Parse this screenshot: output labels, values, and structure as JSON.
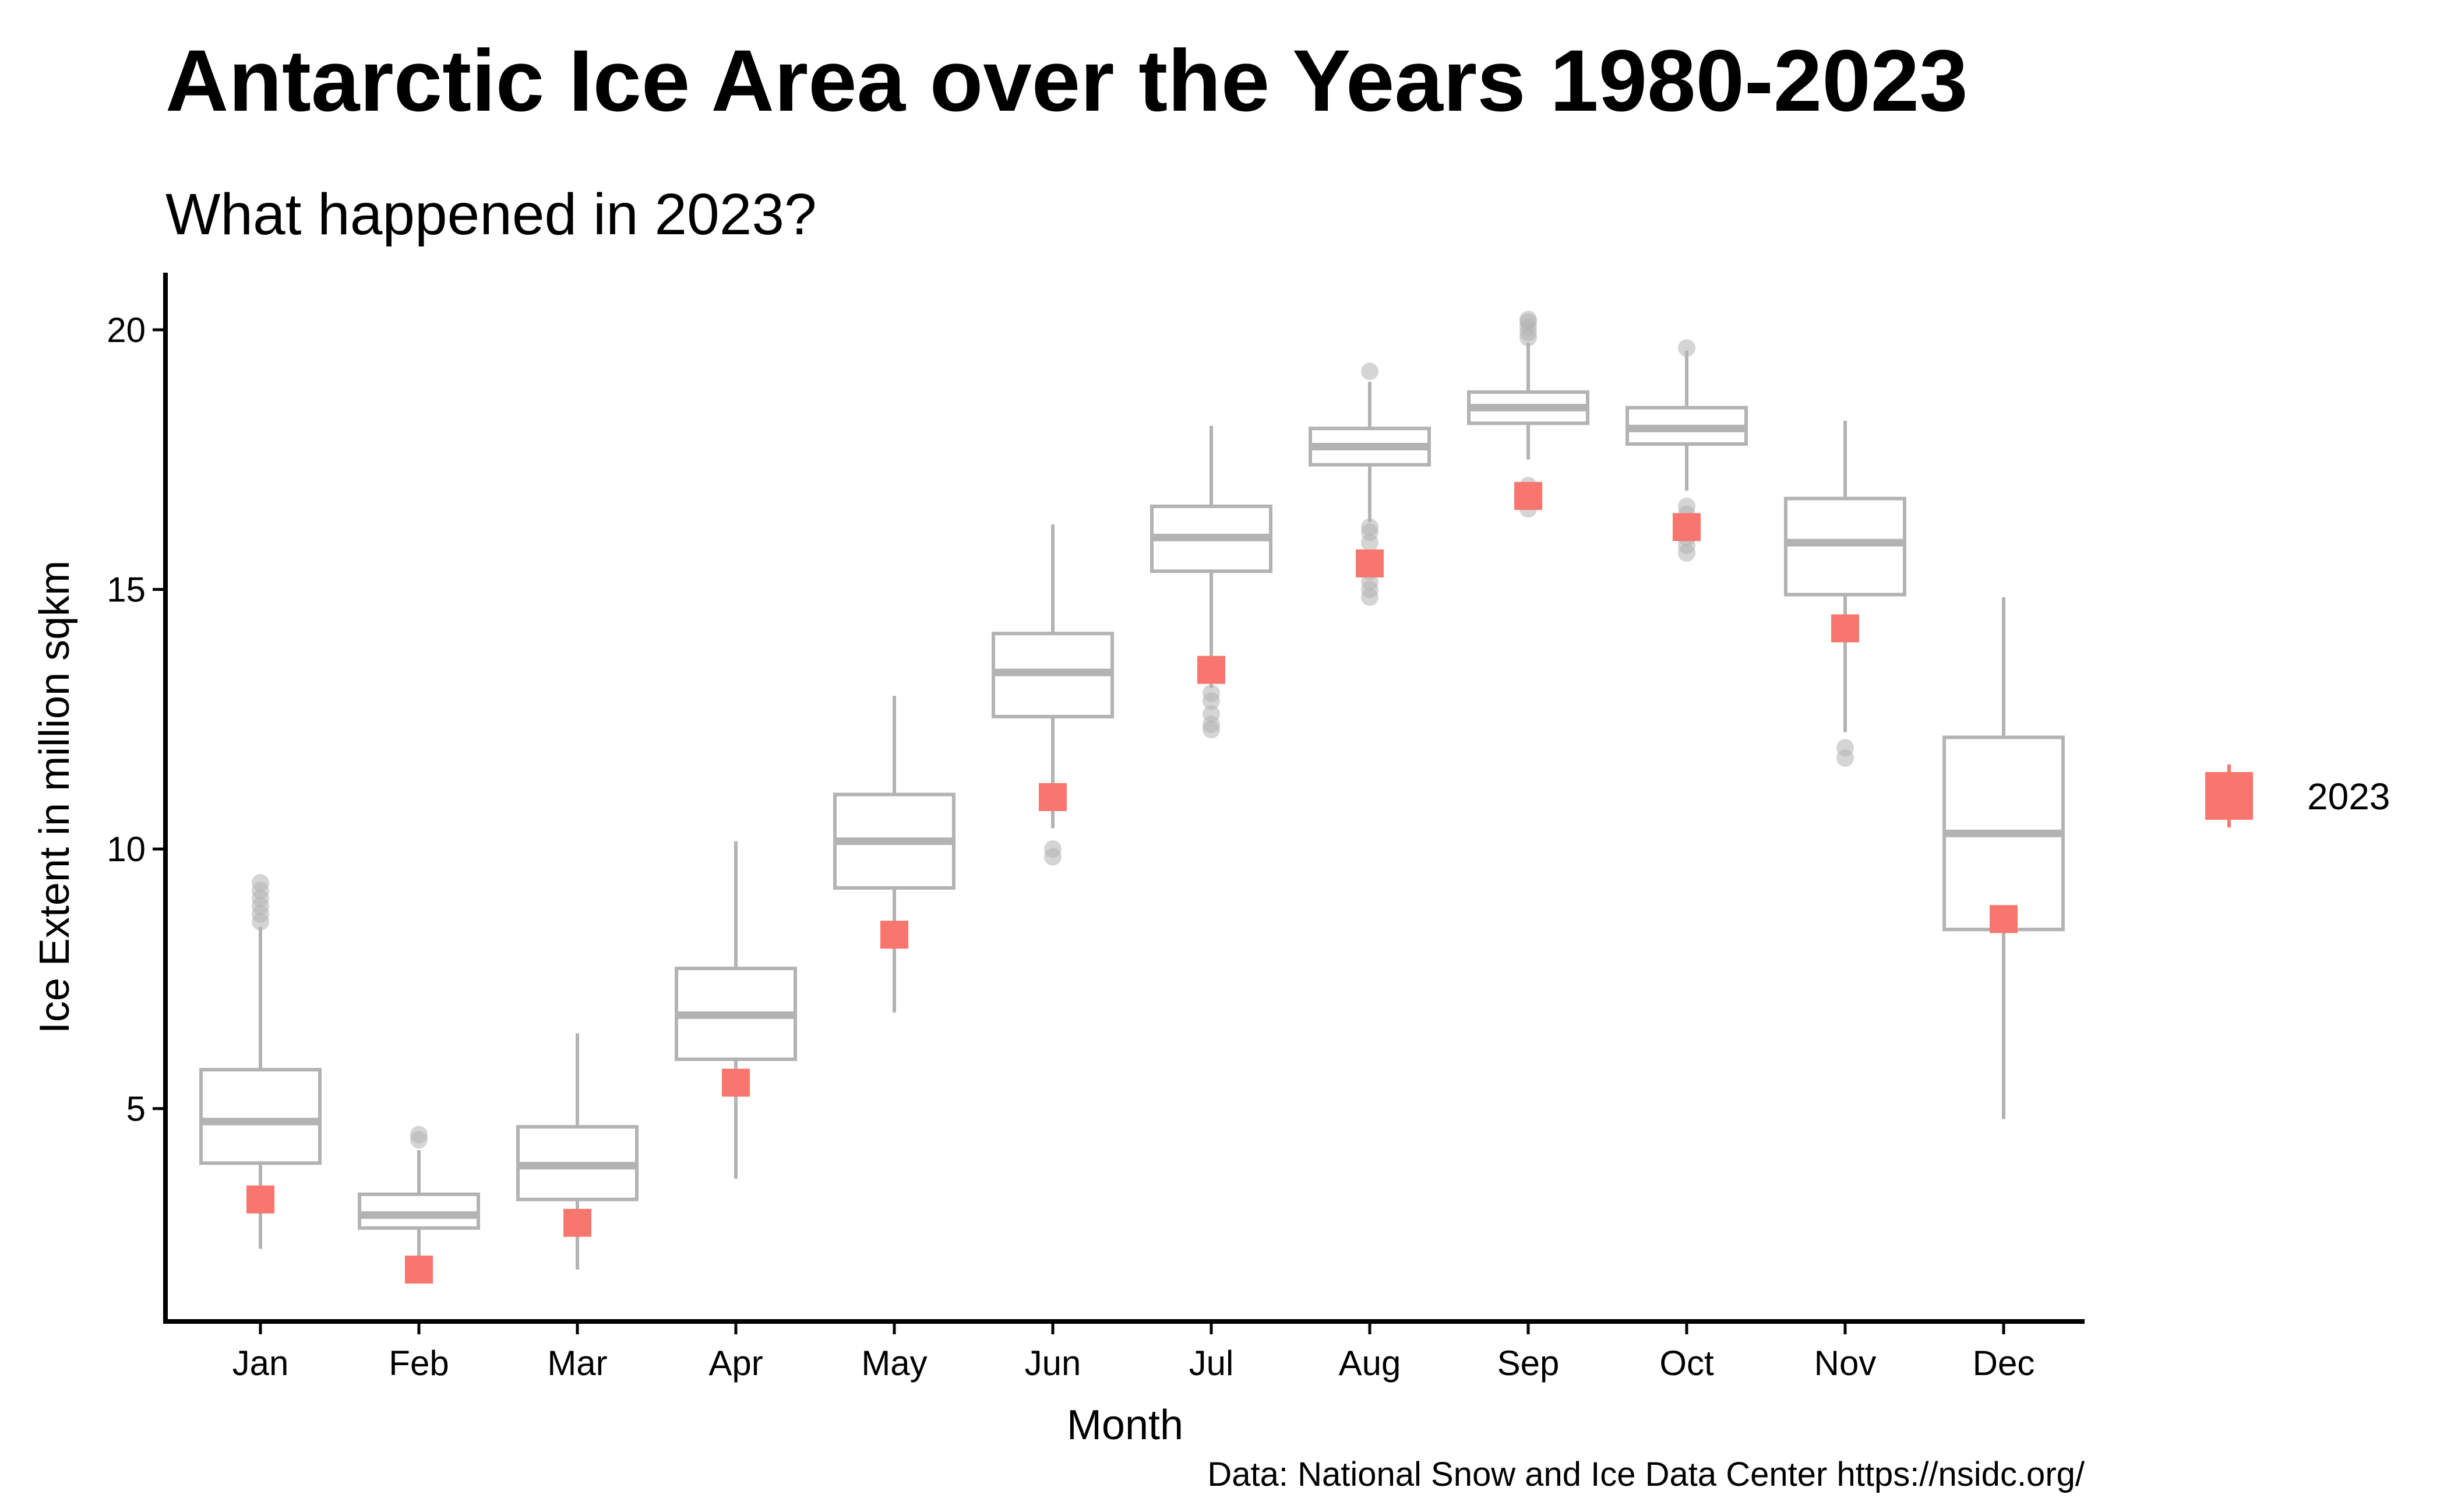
{
  "chart_data": {
    "type": "box",
    "title": "Antarctic Ice Area over the Years 1980-2023",
    "subtitle": "What happened in 2023?",
    "xlabel": "Month",
    "ylabel": "Ice Extent in million sqkm",
    "caption": "Data: National Snow and Ice Data Center https://nsidc.org/",
    "ylim": [
      0.9,
      21.1
    ],
    "yticks": [
      5,
      10,
      15,
      20
    ],
    "grid": false,
    "legend_position": "right",
    "categories": [
      "Jan",
      "Feb",
      "Mar",
      "Apr",
      "May",
      "Jun",
      "Jul",
      "Aug",
      "Sep",
      "Oct",
      "Nov",
      "Dec"
    ],
    "box_series": {
      "color": "#b3b3b3",
      "stats": [
        {
          "whisker_low": 2.3,
          "q1": 3.95,
          "median": 4.75,
          "q3": 5.75,
          "whisker_high": 8.5,
          "outliers": [
            8.6,
            8.75,
            8.9,
            9.05,
            9.2,
            9.35
          ]
        },
        {
          "whisker_low": 2.1,
          "q1": 2.7,
          "median": 2.95,
          "q3": 3.35,
          "whisker_high": 4.2,
          "outliers": [
            4.4,
            4.5
          ]
        },
        {
          "whisker_low": 1.9,
          "q1": 3.25,
          "median": 3.9,
          "q3": 4.65,
          "whisker_high": 6.45,
          "outliers": []
        },
        {
          "whisker_low": 3.65,
          "q1": 5.95,
          "median": 6.8,
          "q3": 7.7,
          "whisker_high": 10.15,
          "outliers": []
        },
        {
          "whisker_low": 6.85,
          "q1": 9.25,
          "median": 10.15,
          "q3": 11.05,
          "whisker_high": 12.95,
          "outliers": []
        },
        {
          "whisker_low": 10.4,
          "q1": 12.55,
          "median": 13.4,
          "q3": 14.15,
          "whisker_high": 16.25,
          "outliers": [
            9.85,
            10.0
          ]
        },
        {
          "whisker_low": 13.1,
          "q1": 15.35,
          "median": 16.0,
          "q3": 16.6,
          "whisker_high": 18.15,
          "outliers": [
            12.3,
            12.4,
            12.6,
            12.85,
            13.0
          ]
        },
        {
          "whisker_low": 16.3,
          "q1": 17.4,
          "median": 17.75,
          "q3": 18.1,
          "whisker_high": 19.0,
          "outliers": [
            14.85,
            15.0,
            15.15,
            15.35,
            15.6,
            15.9,
            16.1,
            16.2,
            19.2
          ]
        },
        {
          "whisker_low": 17.5,
          "q1": 18.2,
          "median": 18.5,
          "q3": 18.8,
          "whisker_high": 19.75,
          "outliers": [
            16.55,
            16.7,
            16.85,
            17.0,
            19.85,
            19.95,
            20.05,
            20.15,
            20.2
          ]
        },
        {
          "whisker_low": 16.9,
          "q1": 17.8,
          "median": 18.1,
          "q3": 18.5,
          "whisker_high": 19.6,
          "outliers": [
            15.7,
            15.85,
            16.0,
            16.15,
            16.3,
            16.45,
            16.6,
            19.65
          ]
        },
        {
          "whisker_low": 12.25,
          "q1": 14.9,
          "median": 15.9,
          "q3": 16.75,
          "whisker_high": 18.25,
          "outliers": [
            11.75,
            11.95
          ]
        },
        {
          "whisker_low": 4.8,
          "q1": 8.45,
          "median": 10.3,
          "q3": 12.15,
          "whisker_high": 14.85,
          "outliers": []
        }
      ]
    },
    "highlight_series": {
      "name": "2023",
      "color": "#f8766d",
      "values": [
        3.25,
        1.9,
        2.8,
        5.5,
        8.35,
        11.0,
        13.45,
        15.5,
        16.8,
        16.2,
        14.25,
        8.65
      ]
    }
  }
}
